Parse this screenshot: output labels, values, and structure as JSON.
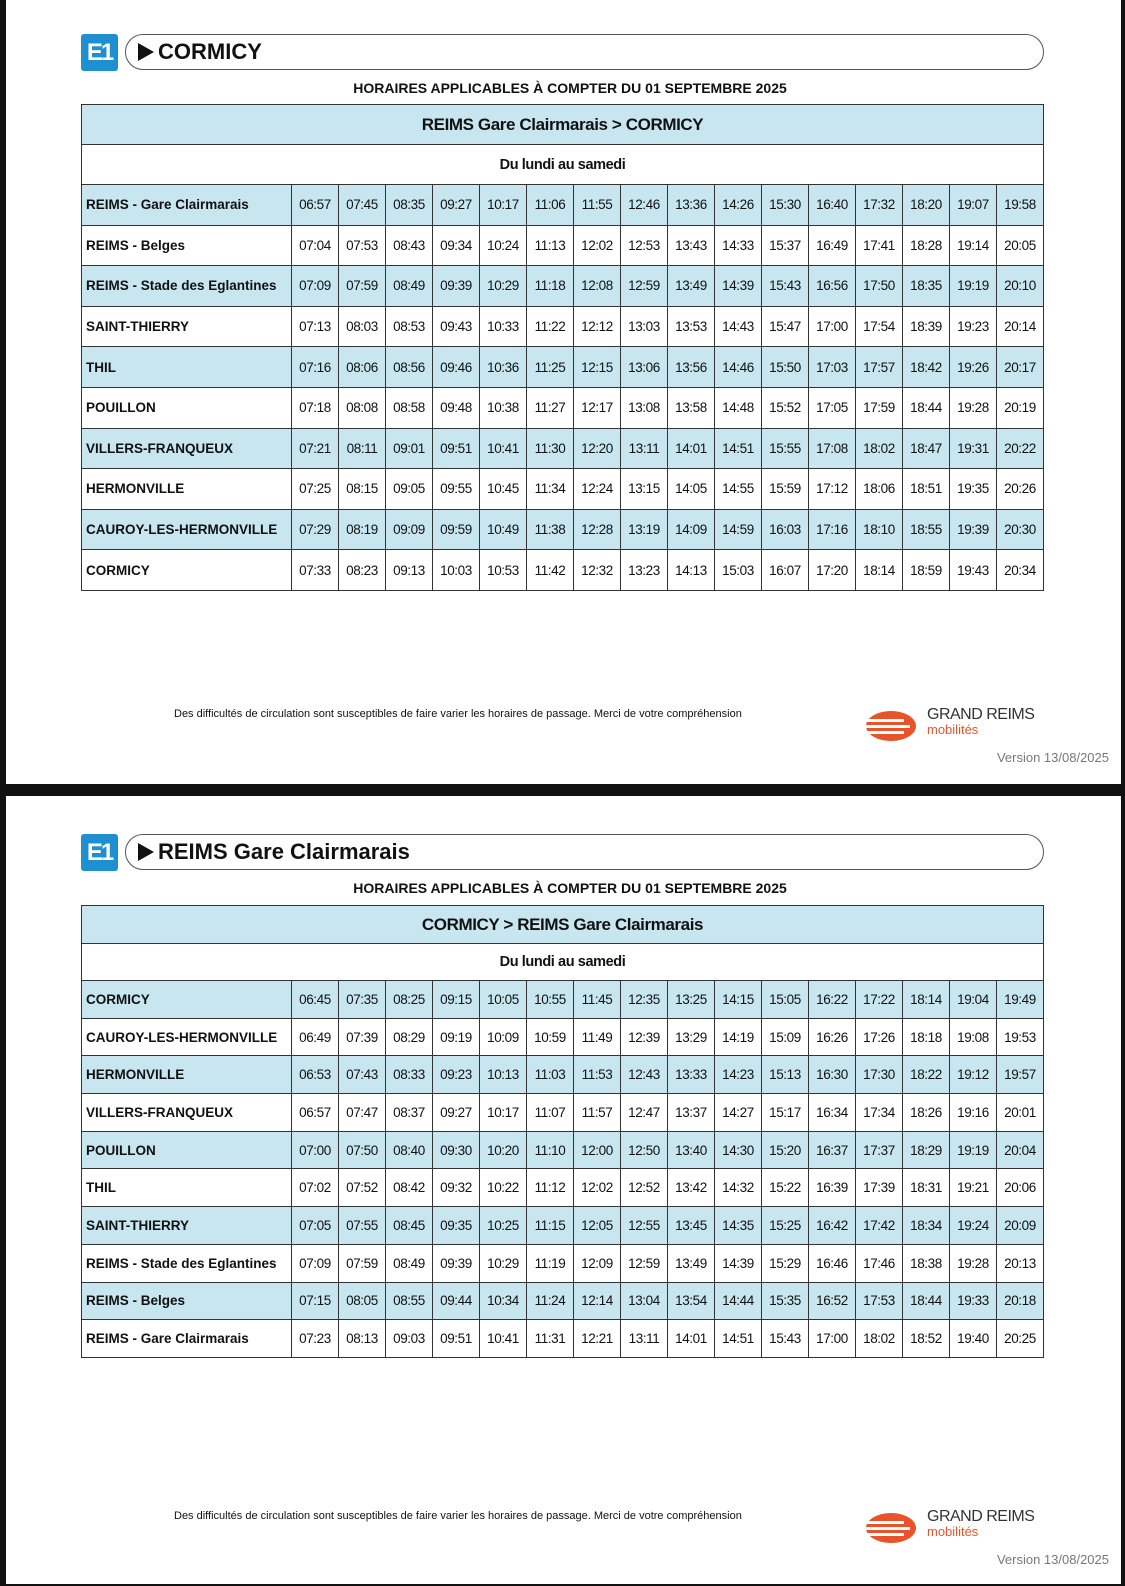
{
  "pages": [
    {
      "line": "E1",
      "destination": "CORMICY",
      "validity": "HORAIRES APPLICABLES À COMPTER DU 01 SEPTEMBRE 2025",
      "table": {
        "title": "REIMS Gare Clairmarais > CORMICY",
        "days": "Du lundi au samedi",
        "rows": [
          [
            "REIMS - Gare Clairmarais",
            "06:57",
            "07:45",
            "08:35",
            "09:27",
            "10:17",
            "11:06",
            "11:55",
            "12:46",
            "13:36",
            "14:26",
            "15:30",
            "16:40",
            "17:32",
            "18:20",
            "19:07",
            "19:58"
          ],
          [
            "REIMS - Belges",
            "07:04",
            "07:53",
            "08:43",
            "09:34",
            "10:24",
            "11:13",
            "12:02",
            "12:53",
            "13:43",
            "14:33",
            "15:37",
            "16:49",
            "17:41",
            "18:28",
            "19:14",
            "20:05"
          ],
          [
            "REIMS - Stade des Eglantines",
            "07:09",
            "07:59",
            "08:49",
            "09:39",
            "10:29",
            "11:18",
            "12:08",
            "12:59",
            "13:49",
            "14:39",
            "15:43",
            "16:56",
            "17:50",
            "18:35",
            "19:19",
            "20:10"
          ],
          [
            "SAINT-THIERRY",
            "07:13",
            "08:03",
            "08:53",
            "09:43",
            "10:33",
            "11:22",
            "12:12",
            "13:03",
            "13:53",
            "14:43",
            "15:47",
            "17:00",
            "17:54",
            "18:39",
            "19:23",
            "20:14"
          ],
          [
            "THIL",
            "07:16",
            "08:06",
            "08:56",
            "09:46",
            "10:36",
            "11:25",
            "12:15",
            "13:06",
            "13:56",
            "14:46",
            "15:50",
            "17:03",
            "17:57",
            "18:42",
            "19:26",
            "20:17"
          ],
          [
            "POUILLON",
            "07:18",
            "08:08",
            "08:58",
            "09:48",
            "10:38",
            "11:27",
            "12:17",
            "13:08",
            "13:58",
            "14:48",
            "15:52",
            "17:05",
            "17:59",
            "18:44",
            "19:28",
            "20:19"
          ],
          [
            "VILLERS-FRANQUEUX",
            "07:21",
            "08:11",
            "09:01",
            "09:51",
            "10:41",
            "11:30",
            "12:20",
            "13:11",
            "14:01",
            "14:51",
            "15:55",
            "17:08",
            "18:02",
            "18:47",
            "19:31",
            "20:22"
          ],
          [
            "HERMONVILLE",
            "07:25",
            "08:15",
            "09:05",
            "09:55",
            "10:45",
            "11:34",
            "12:24",
            "13:15",
            "14:05",
            "14:55",
            "15:59",
            "17:12",
            "18:06",
            "18:51",
            "19:35",
            "20:26"
          ],
          [
            "CAUROY-LES-HERMONVILLE",
            "07:29",
            "08:19",
            "09:09",
            "09:59",
            "10:49",
            "11:38",
            "12:28",
            "13:19",
            "14:09",
            "14:59",
            "16:03",
            "17:16",
            "18:10",
            "18:55",
            "19:39",
            "20:30"
          ],
          [
            "CORMICY",
            "07:33",
            "08:23",
            "09:13",
            "10:03",
            "10:53",
            "11:42",
            "12:32",
            "13:23",
            "14:13",
            "15:03",
            "16:07",
            "17:20",
            "18:14",
            "18:59",
            "19:43",
            "20:34"
          ]
        ]
      },
      "notice": "Des difficultés de circulation sont susceptibles de faire varier les horaires de passage. Merci de votre compréhension",
      "logo": {
        "brand": "GRAND REIMS",
        "sub": "mobilités"
      },
      "version": "Version 13/08/2025"
    },
    {
      "line": "E1",
      "destination": "REIMS Gare Clairmarais",
      "validity": "HORAIRES APPLICABLES À COMPTER DU 01 SEPTEMBRE 2025",
      "table": {
        "title": "CORMICY > REIMS Gare Clairmarais",
        "days": "Du lundi au samedi",
        "rows": [
          [
            "CORMICY",
            "06:45",
            "07:35",
            "08:25",
            "09:15",
            "10:05",
            "10:55",
            "11:45",
            "12:35",
            "13:25",
            "14:15",
            "15:05",
            "16:22",
            "17:22",
            "18:14",
            "19:04",
            "19:49"
          ],
          [
            "CAUROY-LES-HERMONVILLE",
            "06:49",
            "07:39",
            "08:29",
            "09:19",
            "10:09",
            "10:59",
            "11:49",
            "12:39",
            "13:29",
            "14:19",
            "15:09",
            "16:26",
            "17:26",
            "18:18",
            "19:08",
            "19:53"
          ],
          [
            "HERMONVILLE",
            "06:53",
            "07:43",
            "08:33",
            "09:23",
            "10:13",
            "11:03",
            "11:53",
            "12:43",
            "13:33",
            "14:23",
            "15:13",
            "16:30",
            "17:30",
            "18:22",
            "19:12",
            "19:57"
          ],
          [
            "VILLERS-FRANQUEUX",
            "06:57",
            "07:47",
            "08:37",
            "09:27",
            "10:17",
            "11:07",
            "11:57",
            "12:47",
            "13:37",
            "14:27",
            "15:17",
            "16:34",
            "17:34",
            "18:26",
            "19:16",
            "20:01"
          ],
          [
            "POUILLON",
            "07:00",
            "07:50",
            "08:40",
            "09:30",
            "10:20",
            "11:10",
            "12:00",
            "12:50",
            "13:40",
            "14:30",
            "15:20",
            "16:37",
            "17:37",
            "18:29",
            "19:19",
            "20:04"
          ],
          [
            "THIL",
            "07:02",
            "07:52",
            "08:42",
            "09:32",
            "10:22",
            "11:12",
            "12:02",
            "12:52",
            "13:42",
            "14:32",
            "15:22",
            "16:39",
            "17:39",
            "18:31",
            "19:21",
            "20:06"
          ],
          [
            "SAINT-THIERRY",
            "07:05",
            "07:55",
            "08:45",
            "09:35",
            "10:25",
            "11:15",
            "12:05",
            "12:55",
            "13:45",
            "14:35",
            "15:25",
            "16:42",
            "17:42",
            "18:34",
            "19:24",
            "20:09"
          ],
          [
            "REIMS - Stade des Eglantines",
            "07:09",
            "07:59",
            "08:49",
            "09:39",
            "10:29",
            "11:19",
            "12:09",
            "12:59",
            "13:49",
            "14:39",
            "15:29",
            "16:46",
            "17:46",
            "18:38",
            "19:28",
            "20:13"
          ],
          [
            "REIMS - Belges",
            "07:15",
            "08:05",
            "08:55",
            "09:44",
            "10:34",
            "11:24",
            "12:14",
            "13:04",
            "13:54",
            "14:44",
            "15:35",
            "16:52",
            "17:53",
            "18:44",
            "19:33",
            "20:18"
          ],
          [
            "REIMS - Gare Clairmarais",
            "07:23",
            "08:13",
            "09:03",
            "09:51",
            "10:41",
            "11:31",
            "12:21",
            "13:11",
            "14:01",
            "14:51",
            "15:43",
            "17:00",
            "18:02",
            "18:52",
            "19:40",
            "20:25"
          ]
        ]
      },
      "notice": "Des difficultés de circulation sont susceptibles de faire varier les horaires de passage. Merci de votre compréhension",
      "logo": {
        "brand": "GRAND REIMS",
        "sub": "mobilités"
      },
      "version": "Version 13/08/2025"
    }
  ]
}
